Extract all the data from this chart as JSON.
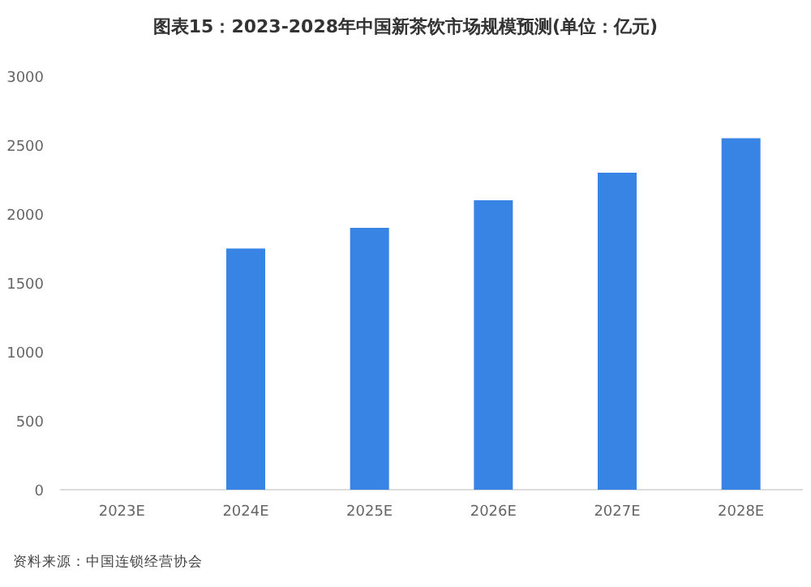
{
  "chart_data": {
    "type": "bar",
    "title": "图表15：2023-2028年中国新茶饮市场规模预测(单位：亿元)",
    "categories": [
      "2023E",
      "2024E",
      "2025E",
      "2026E",
      "2027E",
      "2028E"
    ],
    "values": [
      null,
      1750,
      1900,
      2100,
      2300,
      2550
    ],
    "color": "#3784e4",
    "ylim": [
      0,
      3000
    ],
    "yticks": [
      0,
      500,
      1000,
      1500,
      2000,
      2500,
      3000
    ],
    "grid": false,
    "annotations": [
      "资料来源：中国连锁经营协会"
    ]
  }
}
